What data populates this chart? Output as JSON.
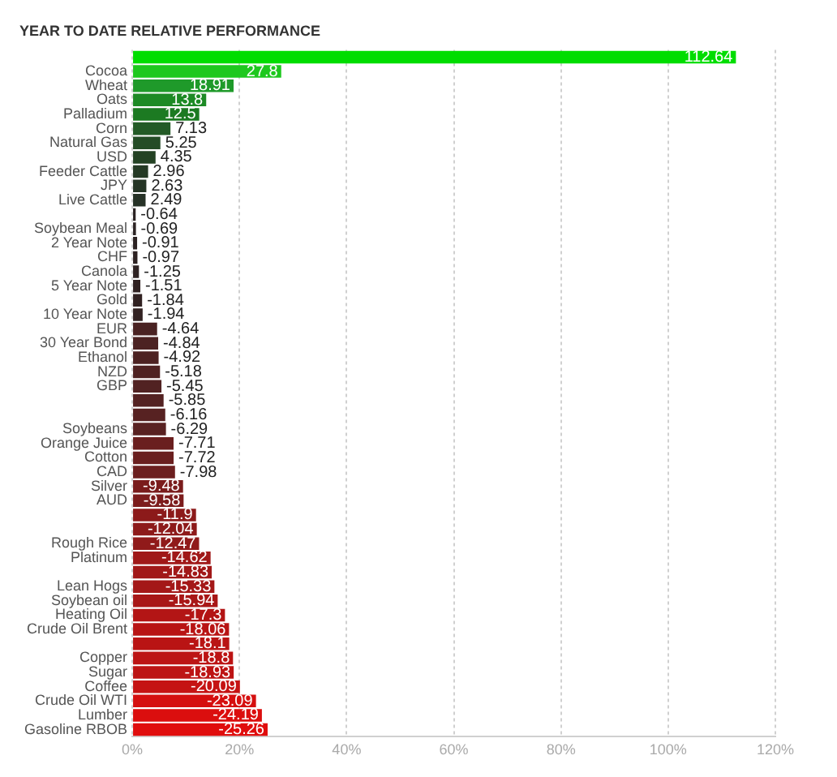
{
  "chart_data": {
    "type": "bar",
    "orientation": "horizontal",
    "title": "YEAR TO DATE RELATIVE PERFORMANCE",
    "categories": [
      null,
      "Cocoa",
      "Wheat",
      "Oats",
      "Palladium",
      "Corn",
      "Natural Gas",
      "USD",
      "Feeder Cattle",
      "JPY",
      "Live Cattle",
      null,
      "Soybean Meal",
      "2 Year Note",
      "CHF",
      "Canola",
      "5 Year Note",
      "Gold",
      "10 Year Note",
      "EUR",
      "30 Year Bond",
      "Ethanol",
      "NZD",
      "GBP",
      null,
      null,
      "Soybeans",
      "Orange Juice",
      "Cotton",
      "CAD",
      "Silver",
      "AUD",
      null,
      null,
      "Rough Rice",
      "Platinum",
      null,
      "Lean Hogs",
      "Soybean oil",
      "Heating Oil",
      "Crude Oil Brent",
      null,
      "Copper",
      "Sugar",
      "Coffee",
      "Crude Oil WTI",
      "Lumber",
      "Gasoline RBOB"
    ],
    "values": [
      112.64,
      27.8,
      18.91,
      13.8,
      12.5,
      7.13,
      5.25,
      4.35,
      2.96,
      2.63,
      2.49,
      -0.64,
      -0.69,
      -0.91,
      -0.97,
      -1.25,
      -1.51,
      -1.84,
      -1.94,
      -4.64,
      -4.84,
      -4.92,
      -5.18,
      -5.45,
      -5.85,
      -6.16,
      -6.29,
      -7.71,
      -7.72,
      -7.98,
      -9.48,
      -9.58,
      -11.9,
      -12.04,
      -12.47,
      -14.62,
      -14.83,
      -15.33,
      -15.94,
      -17.3,
      -18.06,
      -18.1,
      -18.8,
      -18.93,
      -20.09,
      -23.09,
      -24.19,
      -25.26
    ],
    "base": [
      0,
      0,
      0,
      0,
      0,
      0,
      0,
      0,
      0,
      0,
      0,
      0.64,
      0.69,
      0.91,
      0.97,
      1.25,
      1.51,
      1.84,
      1.94,
      4.64,
      4.84,
      4.92,
      5.18,
      5.45,
      5.85,
      6.16,
      6.29,
      7.71,
      7.72,
      7.98,
      9.48,
      9.58,
      11.9,
      12.04,
      12.47,
      14.62,
      14.83,
      15.33,
      15.94,
      17.3,
      18.06,
      18.1,
      18.8,
      18.93,
      20.09,
      23.09,
      24.19,
      25.26
    ],
    "colors": [
      "#00dd00",
      "#1ec81e",
      "#1f9a2a",
      "#1d8a25",
      "#1c7a22",
      "#235a26",
      "#244c26",
      "#244224",
      "#253a25",
      "#253525",
      "#263226",
      "#2a2222",
      "#2b2222",
      "#2c2222",
      "#2d2222",
      "#2e2222",
      "#302222",
      "#312222",
      "#322222",
      "#4a2222",
      "#4c2222",
      "#4d2222",
      "#4f2222",
      "#512222",
      "#542222",
      "#572222",
      "#592222",
      "#6a1f1f",
      "#6a1f1f",
      "#6c1f1f",
      "#7a1c1c",
      "#7c1c1c",
      "#8c1a1a",
      "#8d1a1a",
      "#901a1a",
      "#a01818",
      "#a11818",
      "#a41818",
      "#a81717",
      "#b31515",
      "#b81414",
      "#b91414",
      "#bc1414",
      "#bd1414",
      "#c51313",
      "#d50f0f",
      "#db0e0e",
      "#e00d0d"
    ],
    "xlim": [
      0,
      120
    ],
    "xticks": [
      {
        "value": 0,
        "label": "0%"
      },
      {
        "value": 20,
        "label": "20%"
      },
      {
        "value": 40,
        "label": "40%"
      },
      {
        "value": 60,
        "label": "60%"
      },
      {
        "value": 80,
        "label": "80%"
      },
      {
        "value": 100,
        "label": "100%"
      },
      {
        "value": 120,
        "label": "120%"
      }
    ],
    "grid": "x",
    "data_labels": true
  }
}
